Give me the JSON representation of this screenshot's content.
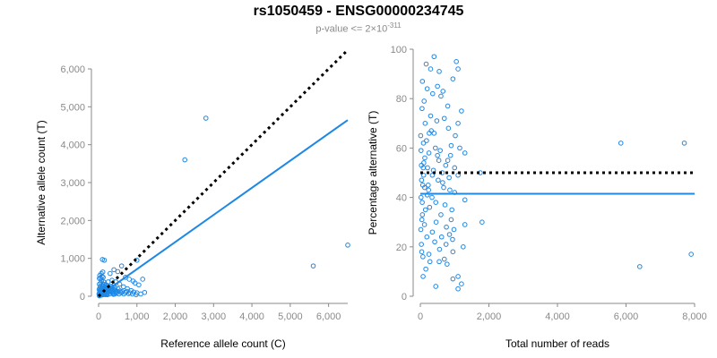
{
  "title": "rs1050459 - ENSG00000234745",
  "subtitle_prefix": "p-value <= 2",
  "subtitle_times": "×",
  "subtitle_base": "10",
  "subtitle_exp": "-311",
  "chart_data": [
    {
      "type": "scatter",
      "xlabel": "Reference allele count (C)",
      "ylabel": "Alternative allele count (T)",
      "xlim": [
        0,
        6500
      ],
      "ylim": [
        0,
        6000
      ],
      "xticks": [
        0,
        1000,
        2000,
        3000,
        4000,
        5000,
        6000
      ],
      "xtick_labels": [
        "0",
        "1,000",
        "2,000",
        "3,000",
        "4,000",
        "5,000",
        "6,000"
      ],
      "yticks": [
        0,
        1000,
        2000,
        3000,
        4000,
        5000,
        6000
      ],
      "ytick_labels": [
        "0",
        "1,000",
        "2,000",
        "3,000",
        "4,000",
        "5,000",
        "6,000"
      ],
      "grid": false,
      "points": [
        [
          2800,
          4700
        ],
        [
          2250,
          3600
        ],
        [
          6500,
          1350
        ],
        [
          5600,
          800
        ],
        [
          1000,
          950
        ],
        [
          100,
          970
        ],
        [
          150,
          950
        ],
        [
          50,
          480
        ],
        [
          120,
          500
        ],
        [
          300,
          600
        ],
        [
          400,
          700
        ],
        [
          500,
          650
        ],
        [
          600,
          800
        ],
        [
          700,
          500
        ],
        [
          800,
          450
        ],
        [
          900,
          400
        ],
        [
          950,
          350
        ],
        [
          1050,
          300
        ],
        [
          1150,
          450
        ],
        [
          1200,
          100
        ],
        [
          1100,
          60
        ],
        [
          1000,
          90
        ],
        [
          850,
          150
        ],
        [
          750,
          200
        ],
        [
          650,
          250
        ],
        [
          550,
          320
        ],
        [
          450,
          380
        ],
        [
          350,
          420
        ],
        [
          250,
          380
        ],
        [
          200,
          300
        ],
        [
          180,
          250
        ],
        [
          160,
          200
        ],
        [
          140,
          150
        ],
        [
          120,
          120
        ],
        [
          100,
          100
        ],
        [
          80,
          80
        ],
        [
          60,
          60
        ],
        [
          40,
          40
        ],
        [
          30,
          20
        ],
        [
          20,
          10
        ],
        [
          50,
          150
        ],
        [
          70,
          200
        ],
        [
          90,
          260
        ],
        [
          110,
          320
        ],
        [
          130,
          380
        ],
        [
          150,
          180
        ],
        [
          170,
          130
        ],
        [
          190,
          90
        ],
        [
          210,
          60
        ],
        [
          230,
          40
        ],
        [
          250,
          120
        ],
        [
          270,
          160
        ],
        [
          290,
          220
        ],
        [
          310,
          260
        ],
        [
          330,
          140
        ],
        [
          350,
          100
        ],
        [
          370,
          70
        ],
        [
          390,
          50
        ],
        [
          410,
          170
        ],
        [
          430,
          230
        ],
        [
          450,
          110
        ],
        [
          470,
          80
        ],
        [
          490,
          130
        ],
        [
          510,
          190
        ],
        [
          530,
          60
        ],
        [
          560,
          140
        ],
        [
          590,
          90
        ],
        [
          620,
          120
        ],
        [
          660,
          60
        ],
        [
          700,
          100
        ],
        [
          740,
          130
        ],
        [
          780,
          70
        ],
        [
          820,
          90
        ],
        [
          880,
          60
        ],
        [
          920,
          110
        ],
        [
          980,
          40
        ],
        [
          60,
          350
        ],
        [
          80,
          420
        ],
        [
          40,
          260
        ],
        [
          30,
          140
        ],
        [
          20,
          320
        ],
        [
          10,
          60
        ],
        [
          15,
          180
        ],
        [
          25,
          90
        ],
        [
          35,
          220
        ],
        [
          45,
          30
        ],
        [
          55,
          110
        ],
        [
          65,
          70
        ],
        [
          75,
          30
        ],
        [
          85,
          140
        ],
        [
          95,
          50
        ],
        [
          105,
          200
        ],
        [
          115,
          40
        ],
        [
          125,
          260
        ],
        [
          135,
          80
        ],
        [
          145,
          310
        ],
        [
          155,
          60
        ],
        [
          165,
          120
        ],
        [
          175,
          40
        ],
        [
          185,
          170
        ],
        [
          195,
          110
        ],
        [
          205,
          220
        ],
        [
          215,
          150
        ],
        [
          225,
          70
        ],
        [
          240,
          270
        ],
        [
          260,
          190
        ],
        [
          280,
          60
        ],
        [
          300,
          140
        ],
        [
          320,
          200
        ],
        [
          340,
          260
        ],
        [
          360,
          160
        ],
        [
          380,
          110
        ],
        [
          400,
          290
        ],
        [
          420,
          60
        ],
        [
          440,
          150
        ],
        [
          20,
          470
        ],
        [
          30,
          550
        ],
        [
          70,
          600
        ],
        [
          90,
          520
        ],
        [
          110,
          640
        ]
      ],
      "fit_line": [
        [
          0,
          0
        ],
        [
          6500,
          4650
        ]
      ],
      "reference_line": [
        [
          0,
          0
        ],
        [
          6500,
          6500
        ]
      ]
    },
    {
      "type": "scatter",
      "xlabel": "Total number of reads",
      "ylabel": "Percentage alternative (T)",
      "xlim": [
        0,
        8000
      ],
      "ylim": [
        0,
        100
      ],
      "xticks": [
        0,
        2000,
        4000,
        6000,
        8000
      ],
      "xtick_labels": [
        "0",
        "2,000",
        "4,000",
        "6,000",
        "8,000"
      ],
      "yticks": [
        0,
        20,
        40,
        60,
        80,
        100
      ],
      "ytick_labels": [
        "0",
        "20",
        "40",
        "60",
        "80",
        "100"
      ],
      "grid": false,
      "points": [
        [
          7900,
          17
        ],
        [
          6400,
          12
        ],
        [
          7700,
          62
        ],
        [
          5850,
          62
        ],
        [
          1800,
          30
        ],
        [
          1750,
          50
        ],
        [
          1300,
          58
        ],
        [
          1300,
          39
        ],
        [
          1300,
          29
        ],
        [
          1250,
          20
        ],
        [
          1200,
          75
        ],
        [
          1200,
          5
        ],
        [
          1150,
          60
        ],
        [
          1100,
          92
        ],
        [
          1100,
          70
        ],
        [
          1100,
          49
        ],
        [
          1100,
          8
        ],
        [
          1100,
          3
        ],
        [
          1050,
          95
        ],
        [
          1000,
          52
        ],
        [
          1000,
          42
        ],
        [
          950,
          88
        ],
        [
          950,
          18
        ],
        [
          950,
          7
        ],
        [
          900,
          31
        ],
        [
          900,
          61
        ],
        [
          850,
          25
        ],
        [
          800,
          77
        ],
        [
          800,
          55
        ],
        [
          750,
          21
        ],
        [
          700,
          72
        ],
        [
          650,
          46
        ],
        [
          600,
          81
        ],
        [
          600,
          33
        ],
        [
          550,
          91
        ],
        [
          550,
          14
        ],
        [
          500,
          85
        ],
        [
          500,
          57
        ],
        [
          450,
          38
        ],
        [
          450,
          4
        ],
        [
          400,
          97
        ],
        [
          400,
          66
        ],
        [
          350,
          26
        ],
        [
          350,
          49
        ],
        [
          300,
          92
        ],
        [
          300,
          73
        ],
        [
          250,
          17
        ],
        [
          250,
          58
        ],
        [
          200,
          84
        ],
        [
          200,
          41
        ],
        [
          180,
          63
        ],
        [
          160,
          11
        ],
        [
          140,
          70
        ],
        [
          120,
          29
        ],
        [
          100,
          54
        ],
        [
          90,
          62
        ],
        [
          80,
          8
        ],
        [
          70,
          45
        ],
        [
          60,
          33
        ],
        [
          50,
          76
        ],
        [
          40,
          18
        ],
        [
          30,
          53
        ],
        [
          20,
          40
        ],
        [
          15,
          27
        ],
        [
          10,
          65
        ],
        [
          60,
          87
        ],
        [
          110,
          79
        ],
        [
          170,
          94
        ],
        [
          230,
          45
        ],
        [
          270,
          36
        ],
        [
          320,
          67
        ],
        [
          380,
          51
        ],
        [
          420,
          22
        ],
        [
          480,
          71
        ],
        [
          520,
          47
        ],
        [
          580,
          59
        ],
        [
          620,
          24
        ],
        [
          680,
          44
        ],
        [
          720,
          37
        ],
        [
          780,
          13
        ],
        [
          820,
          68
        ],
        [
          860,
          43
        ],
        [
          920,
          35
        ],
        [
          980,
          27
        ],
        [
          1020,
          65
        ],
        [
          30,
          21
        ],
        [
          45,
          31
        ],
        [
          75,
          16
        ],
        [
          95,
          49
        ],
        [
          130,
          56
        ],
        [
          150,
          35
        ],
        [
          190,
          24
        ],
        [
          210,
          52
        ],
        [
          240,
          43
        ],
        [
          260,
          66
        ],
        [
          280,
          14
        ],
        [
          340,
          40
        ],
        [
          360,
          82
        ],
        [
          440,
          60
        ],
        [
          460,
          30
        ],
        [
          540,
          55
        ],
        [
          560,
          19
        ],
        [
          640,
          50
        ],
        [
          660,
          83
        ],
        [
          700,
          15
        ],
        [
          740,
          53
        ],
        [
          760,
          28
        ],
        [
          840,
          48
        ],
        [
          880,
          57
        ],
        [
          940,
          23
        ],
        [
          20,
          59
        ],
        [
          35,
          47
        ],
        [
          55,
          38
        ],
        [
          85,
          52
        ],
        [
          125,
          44
        ]
      ],
      "fit_line": [
        [
          0,
          41.5
        ],
        [
          8000,
          41.5
        ]
      ],
      "reference_line": [
        [
          0,
          50
        ],
        [
          8000,
          50
        ]
      ]
    }
  ]
}
